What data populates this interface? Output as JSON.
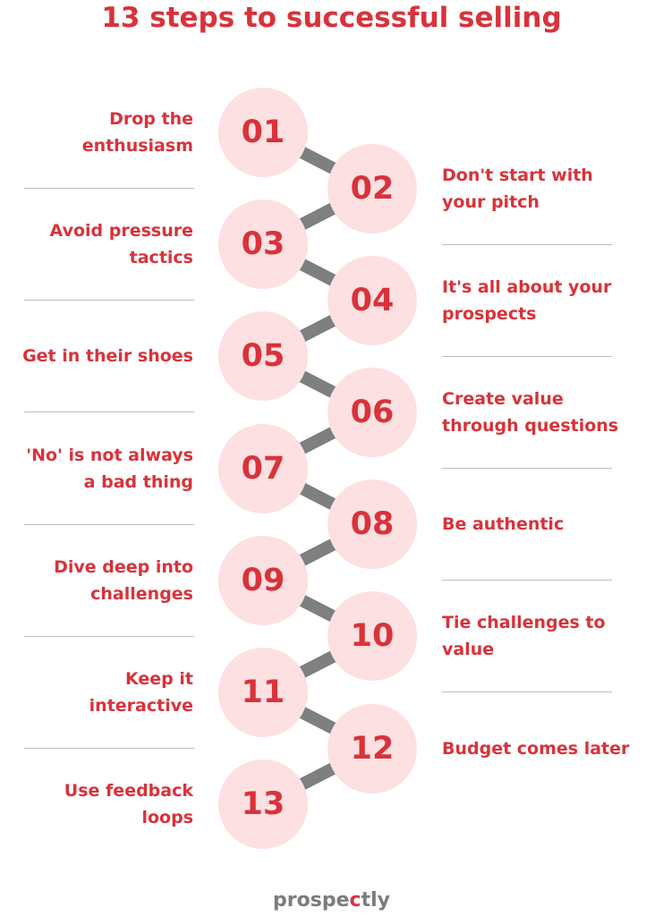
{
  "title": "13 steps to successful selling",
  "colors": {
    "accent": "#d9323a",
    "circle": "#fde0e1",
    "connector": "#7d7f81"
  },
  "steps": [
    {
      "number": "01",
      "label": "Drop the enthusiasm"
    },
    {
      "number": "02",
      "label": "Don't start with your pitch"
    },
    {
      "number": "03",
      "label": "Avoid pressure tactics"
    },
    {
      "number": "04",
      "label": "It's all about your prospects"
    },
    {
      "number": "05",
      "label": "Get in their shoes"
    },
    {
      "number": "06",
      "label": "Create value through questions"
    },
    {
      "number": "07",
      "label": "'No' is not always a bad thing"
    },
    {
      "number": "08",
      "label": "Be authentic"
    },
    {
      "number": "09",
      "label": "Dive deep into challenges"
    },
    {
      "number": "10",
      "label": "Tie challenges to value"
    },
    {
      "number": "11",
      "label": "Keep it interactive"
    },
    {
      "number": "12",
      "label": "Budget comes later"
    },
    {
      "number": "13",
      "label": "Use feedback loops"
    }
  ],
  "logo": {
    "before": "prospe",
    "accent": "c",
    "after": "tly"
  }
}
